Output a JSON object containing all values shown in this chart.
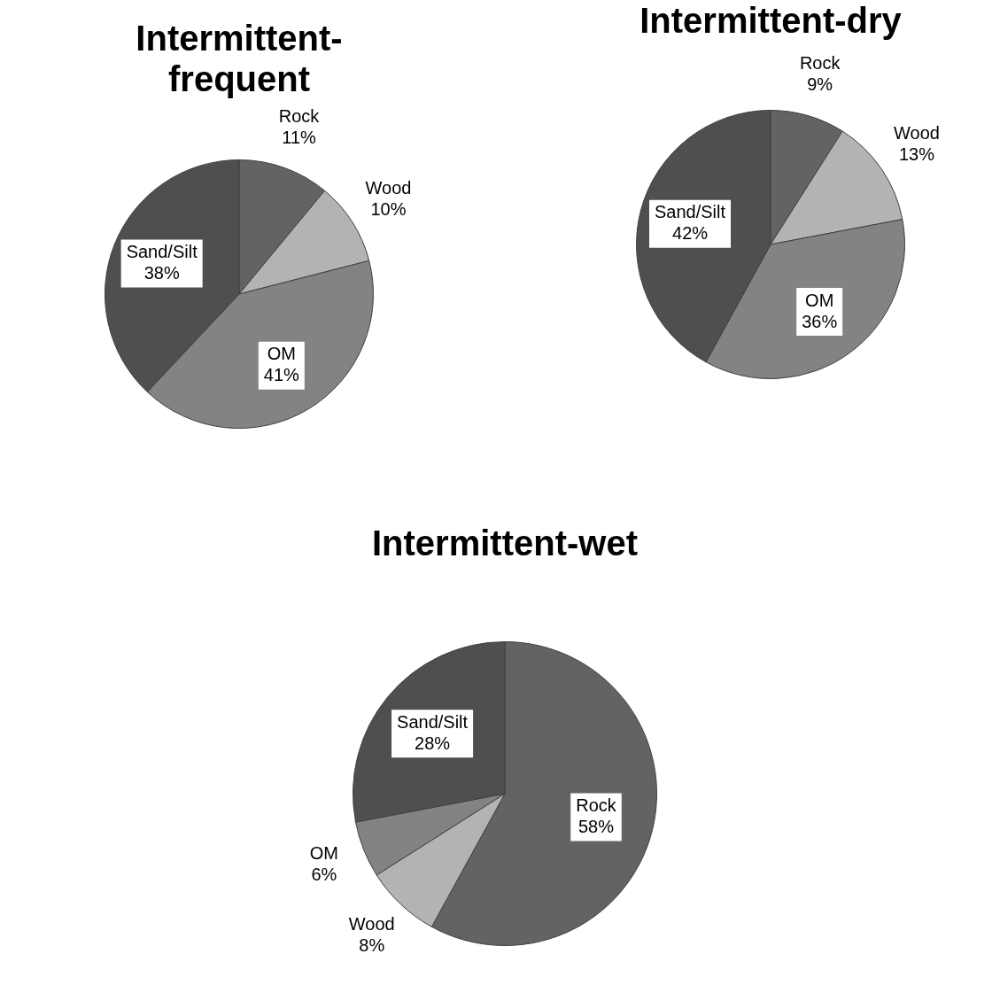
{
  "chart_data": [
    {
      "type": "pie",
      "title": "Intermittent-frequent",
      "categories": [
        "Rock",
        "Wood",
        "OM",
        "Sand/Silt"
      ],
      "values": [
        11,
        10,
        41,
        38
      ],
      "value_labels": [
        "11%",
        "10%",
        "41%",
        "38%"
      ],
      "colors": [
        "#636363",
        "#b3b3b3",
        "#838383",
        "#4f4f4f"
      ],
      "legend": false
    },
    {
      "type": "pie",
      "title": "Intermittent-dry",
      "categories": [
        "Rock",
        "Wood",
        "OM",
        "Sand/Silt"
      ],
      "values": [
        9,
        13,
        36,
        42
      ],
      "value_labels": [
        "9%",
        "13%",
        "36%",
        "42%"
      ],
      "colors": [
        "#636363",
        "#b3b3b3",
        "#838383",
        "#4f4f4f"
      ],
      "legend": false
    },
    {
      "type": "pie",
      "title": "Intermittent-wet",
      "categories": [
        "Rock",
        "Wood",
        "OM",
        "Sand/Silt"
      ],
      "values": [
        58,
        8,
        6,
        28
      ],
      "value_labels": [
        "58%",
        "8%",
        "6%",
        "28%"
      ],
      "colors": [
        "#636363",
        "#b3b3b3",
        "#838383",
        "#4f4f4f"
      ],
      "legend": false
    }
  ]
}
